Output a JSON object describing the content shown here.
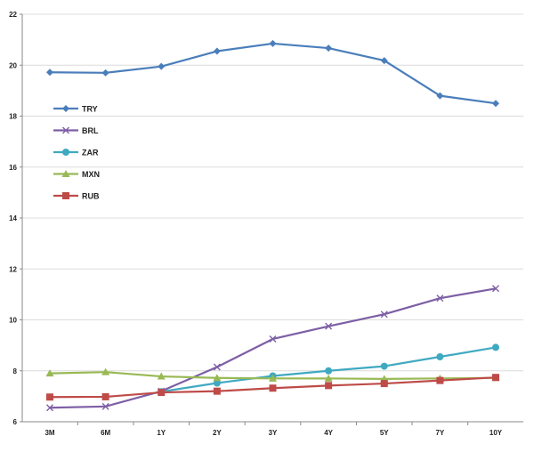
{
  "chart_data": {
    "type": "line",
    "categories": [
      "3M",
      "6M",
      "1Y",
      "2Y",
      "3Y",
      "4Y",
      "5Y",
      "7Y",
      "10Y"
    ],
    "ylim": [
      6,
      22
    ],
    "yticks": [
      "6",
      "8",
      "10",
      "12",
      "14",
      "16",
      "18",
      "20",
      "22"
    ],
    "grid": true,
    "legend_position": "left",
    "series": [
      {
        "name": "TRY",
        "color": "#4a7ebb",
        "marker": "diamond",
        "values": [
          19.72,
          19.7,
          19.95,
          20.55,
          20.85,
          20.67,
          20.18,
          18.8,
          18.5
        ]
      },
      {
        "name": "BRL",
        "color": "#7d5fa5",
        "marker": "x",
        "values": [
          6.55,
          6.6,
          7.2,
          8.15,
          9.25,
          9.75,
          10.22,
          10.85,
          11.23
        ]
      },
      {
        "name": "ZAR",
        "color": "#3fa9c1",
        "marker": "circle",
        "values": [
          null,
          null,
          7.18,
          7.52,
          7.8,
          8.0,
          8.18,
          8.55,
          8.92
        ]
      },
      {
        "name": "MXN",
        "color": "#98b954",
        "marker": "triangle",
        "values": [
          7.9,
          7.95,
          7.78,
          7.72,
          7.7,
          7.7,
          7.68,
          7.7,
          7.72
        ]
      },
      {
        "name": "RUB",
        "color": "#be4b48",
        "marker": "square",
        "values": [
          6.97,
          6.98,
          7.15,
          7.2,
          7.32,
          7.42,
          7.5,
          7.62,
          7.74
        ]
      }
    ]
  }
}
